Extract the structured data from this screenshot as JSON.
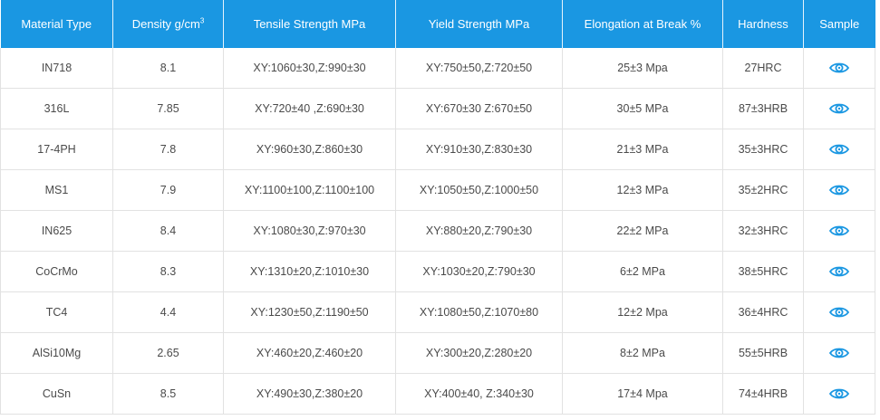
{
  "table": {
    "headers": {
      "material": "Material Type",
      "density": "Density g/cm",
      "density_sup": "3",
      "tensile": "Tensile Strength MPa",
      "yield": "Yield Strength MPa",
      "elongation": "Elongation at Break %",
      "hardness": "Hardness",
      "sample": "Sample"
    },
    "rows": [
      {
        "material": "IN718",
        "density": "8.1",
        "tensile": "XY:1060±30,Z:990±30",
        "yield": "XY:750±50,Z:720±50",
        "elongation": "25±3 Mpa",
        "hardness": "27HRC",
        "sample_icon": "eye-icon"
      },
      {
        "material": "316L",
        "density": "7.85",
        "tensile": "XY:720±40 ,Z:690±30",
        "yield": "XY:670±30 Z:670±50",
        "elongation": "30±5 MPa",
        "hardness": "87±3HRB",
        "sample_icon": "eye-icon"
      },
      {
        "material": "17-4PH",
        "density": "7.8",
        "tensile": "XY:960±30,Z:860±30",
        "yield": "XY:910±30,Z:830±30",
        "elongation": "21±3 MPa",
        "hardness": "35±3HRC",
        "sample_icon": "eye-icon"
      },
      {
        "material": "MS1",
        "density": "7.9",
        "tensile": "XY:1100±100,Z:1100±100",
        "yield": "XY:1050±50,Z:1000±50",
        "elongation": "12±3 MPa",
        "hardness": "35±2HRC",
        "sample_icon": "eye-icon"
      },
      {
        "material": "IN625",
        "density": "8.4",
        "tensile": "XY:1080±30,Z:970±30",
        "yield": "XY:880±20,Z:790±30",
        "elongation": "22±2 MPa",
        "hardness": "32±3HRC",
        "sample_icon": "eye-icon"
      },
      {
        "material": "CoCrMo",
        "density": "8.3",
        "tensile": "XY:1310±20,Z:1010±30",
        "yield": "XY:1030±20,Z:790±30",
        "elongation": "6±2 MPa",
        "hardness": "38±5HRC",
        "sample_icon": "eye-icon"
      },
      {
        "material": "TC4",
        "density": "4.4",
        "tensile": "XY:1230±50,Z:1190±50",
        "yield": "XY:1080±50,Z:1070±80",
        "elongation": "12±2 Mpa",
        "hardness": "36±4HRC",
        "sample_icon": "eye-icon"
      },
      {
        "material": "AlSi10Mg",
        "density": "2.65",
        "tensile": "XY:460±20,Z:460±20",
        "yield": "XY:300±20,Z:280±20",
        "elongation": "8±2 MPa",
        "hardness": "55±5HRB",
        "sample_icon": "eye-icon"
      },
      {
        "material": "CuSn",
        "density": "8.5",
        "tensile": "XY:490±30,Z:380±20",
        "yield": "XY:400±40, Z:340±30",
        "elongation": "17±4 Mpa",
        "hardness": "74±4HRB",
        "sample_icon": "eye-icon"
      }
    ]
  },
  "colors": {
    "header_bg": "#1a97e2",
    "header_text": "#ffffff",
    "icon": "#1a97e2",
    "grid": "#e2e2e2"
  }
}
